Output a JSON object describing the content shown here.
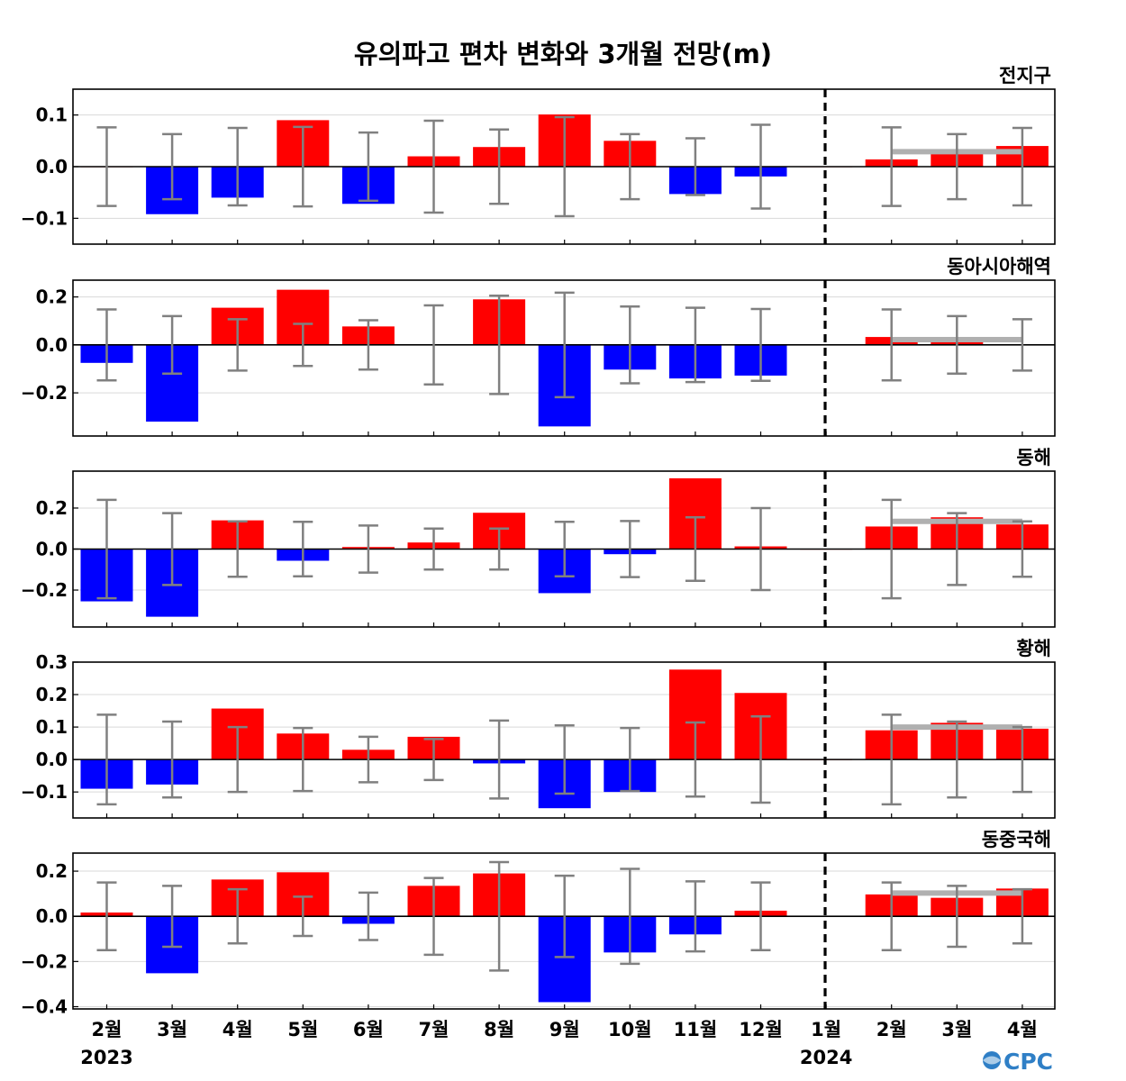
{
  "title": "유의파고 편차 변화와 3개월 전망(m)",
  "logo": "CPC",
  "colors": {
    "positive": "#ff0000",
    "negative": "#0000ff",
    "errorbar": "#808080",
    "forecast_mean": "#b0b0b0",
    "grid": "#d9d9d9",
    "divider": "#000000"
  },
  "chart_data": [
    {
      "type": "bar",
      "title": "전지구",
      "categories": [
        "2월",
        "3월",
        "4월",
        "5월",
        "6월",
        "7월",
        "8월",
        "9월",
        "10월",
        "11월",
        "12월",
        "1월",
        "2월",
        "3월",
        "4월"
      ],
      "values": [
        0.0,
        -0.092,
        -0.06,
        0.09,
        -0.072,
        0.02,
        0.038,
        0.101,
        0.05,
        -0.053,
        -0.019,
        0.0,
        0.014,
        0.03,
        0.04
      ],
      "error": [
        0.076,
        0.063,
        0.075,
        0.077,
        0.066,
        0.089,
        0.072,
        0.096,
        0.063,
        0.055,
        0.081,
        0.0,
        0.076,
        0.063,
        0.075
      ],
      "forecast_mean": 0.029,
      "yticks": [
        -0.1,
        0.0,
        0.1
      ],
      "ytick_labels": [
        "−0.1",
        "0.0",
        "0.1"
      ],
      "ylim": [
        -0.15,
        0.15
      ],
      "grid": true
    },
    {
      "type": "bar",
      "title": "동아시아해역",
      "categories": [
        "2월",
        "3월",
        "4월",
        "5월",
        "6월",
        "7월",
        "8월",
        "9월",
        "10월",
        "11월",
        "12월",
        "1월",
        "2월",
        "3월",
        "4월"
      ],
      "values": [
        -0.075,
        -0.32,
        0.155,
        0.23,
        0.077,
        0.0,
        0.19,
        -0.34,
        -0.103,
        -0.14,
        -0.128,
        0.0,
        0.033,
        0.02,
        0.0
      ],
      "error": [
        0.148,
        0.12,
        0.107,
        0.088,
        0.103,
        0.165,
        0.205,
        0.218,
        0.16,
        0.155,
        0.15,
        0.0,
        0.148,
        0.12,
        0.107
      ],
      "forecast_mean": 0.022,
      "yticks": [
        -0.2,
        0.0,
        0.2
      ],
      "ytick_labels": [
        "−0.2",
        "0.0",
        "0.2"
      ],
      "ylim": [
        -0.38,
        0.27
      ],
      "grid": true
    },
    {
      "type": "bar",
      "title": "동해",
      "categories": [
        "2월",
        "3월",
        "4월",
        "5월",
        "6월",
        "7월",
        "8월",
        "9월",
        "10월",
        "11월",
        "12월",
        "1월",
        "2월",
        "3월",
        "4월"
      ],
      "values": [
        -0.255,
        -0.33,
        0.14,
        -0.057,
        0.01,
        0.032,
        0.177,
        -0.215,
        -0.025,
        0.345,
        0.013,
        0.0,
        0.11,
        0.155,
        0.12
      ],
      "error": [
        0.24,
        0.175,
        0.135,
        0.133,
        0.115,
        0.1,
        0.1,
        0.133,
        0.137,
        0.155,
        0.2,
        0.0,
        0.24,
        0.175,
        0.135
      ],
      "forecast_mean": 0.135,
      "yticks": [
        -0.2,
        0.0,
        0.2
      ],
      "ytick_labels": [
        "−0.2",
        "0.0",
        "0.2"
      ],
      "ylim": [
        -0.38,
        0.38
      ],
      "grid": true
    },
    {
      "type": "bar",
      "title": "황해",
      "categories": [
        "2월",
        "3월",
        "4월",
        "5월",
        "6월",
        "7월",
        "8월",
        "9월",
        "10월",
        "11월",
        "12월",
        "1월",
        "2월",
        "3월",
        "4월"
      ],
      "values": [
        -0.09,
        -0.077,
        0.157,
        0.08,
        0.03,
        0.07,
        -0.012,
        -0.15,
        -0.1,
        0.277,
        0.205,
        0.0,
        0.09,
        0.113,
        0.095
      ],
      "error": [
        0.138,
        0.117,
        0.1,
        0.097,
        0.07,
        0.063,
        0.12,
        0.105,
        0.097,
        0.114,
        0.133,
        0.0,
        0.138,
        0.117,
        0.1
      ],
      "forecast_mean": 0.1,
      "yticks": [
        -0.1,
        0.0,
        0.1,
        0.2,
        0.3
      ],
      "ytick_labels": [
        "−0.1",
        "0.0",
        "0.1",
        "0.2",
        "0.3"
      ],
      "ylim": [
        -0.18,
        0.3
      ],
      "grid": true
    },
    {
      "type": "bar",
      "title": "동중국해",
      "categories": [
        "2월",
        "3월",
        "4월",
        "5월",
        "6월",
        "7월",
        "8월",
        "9월",
        "10월",
        "11월",
        "12월",
        "1월",
        "2월",
        "3월",
        "4월"
      ],
      "values": [
        0.017,
        -0.252,
        0.163,
        0.195,
        -0.033,
        0.135,
        0.19,
        -0.38,
        -0.16,
        -0.08,
        0.025,
        0.0,
        0.097,
        0.082,
        0.123
      ],
      "error": [
        0.15,
        0.135,
        0.12,
        0.087,
        0.105,
        0.17,
        0.24,
        0.18,
        0.21,
        0.155,
        0.15,
        0.0,
        0.15,
        0.135,
        0.12
      ],
      "forecast_mean": 0.103,
      "yticks": [
        -0.4,
        -0.2,
        0.0,
        0.2
      ],
      "ytick_labels": [
        "−0.4",
        "−0.2",
        "0.0",
        "0.2"
      ],
      "ylim": [
        -0.41,
        0.28
      ],
      "grid": true,
      "x_tick_labels": [
        "2월",
        "3월",
        "4월",
        "5월",
        "6월",
        "7월",
        "8월",
        "9월",
        "10월",
        "11월",
        "12월",
        "1월",
        "2월",
        "3월",
        "4월"
      ],
      "year_labels": [
        {
          "category_index": 0,
          "text": "2023"
        },
        {
          "category_index": 11,
          "text": "2024"
        }
      ],
      "divider_after_index": 10.5
    }
  ]
}
